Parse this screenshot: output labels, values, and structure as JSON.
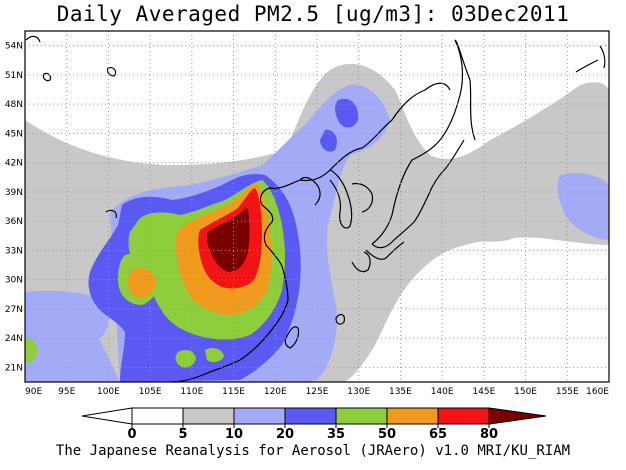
{
  "title": "Daily Averaged PM2.5 [ug/m3]: 03Dec2011",
  "footer": "The Japanese Reanalysis for Aerosol (JRAero) v1.0 MRI/KU_RIAM",
  "map": {
    "lat_ticks": [
      "21N",
      "24N",
      "27N",
      "30N",
      "33N",
      "36N",
      "39N",
      "42N",
      "45N",
      "48N",
      "51N",
      "54N"
    ],
    "lon_ticks": [
      "90E",
      "95E",
      "100E",
      "105E",
      "110E",
      "115E",
      "120E",
      "125E",
      "130E",
      "135E",
      "140E",
      "145E",
      "150E",
      "155E",
      "160E"
    ],
    "lat_range": [
      19.5,
      55.5
    ],
    "lon_range": [
      90,
      160
    ]
  },
  "legend": {
    "labels": [
      "0",
      "5",
      "10",
      "20",
      "35",
      "50",
      "65",
      "80"
    ],
    "colors": {
      "lt0": "#ffffff",
      "0-5": "#ffffff",
      "5-10": "#c8c8c8",
      "10-20": "#a4abf6",
      "20-35": "#5a5af2",
      "35-50": "#8ecd3c",
      "50-65": "#f09a1e",
      "65-80": "#f01414",
      "gt80": "#7a0000"
    }
  }
}
